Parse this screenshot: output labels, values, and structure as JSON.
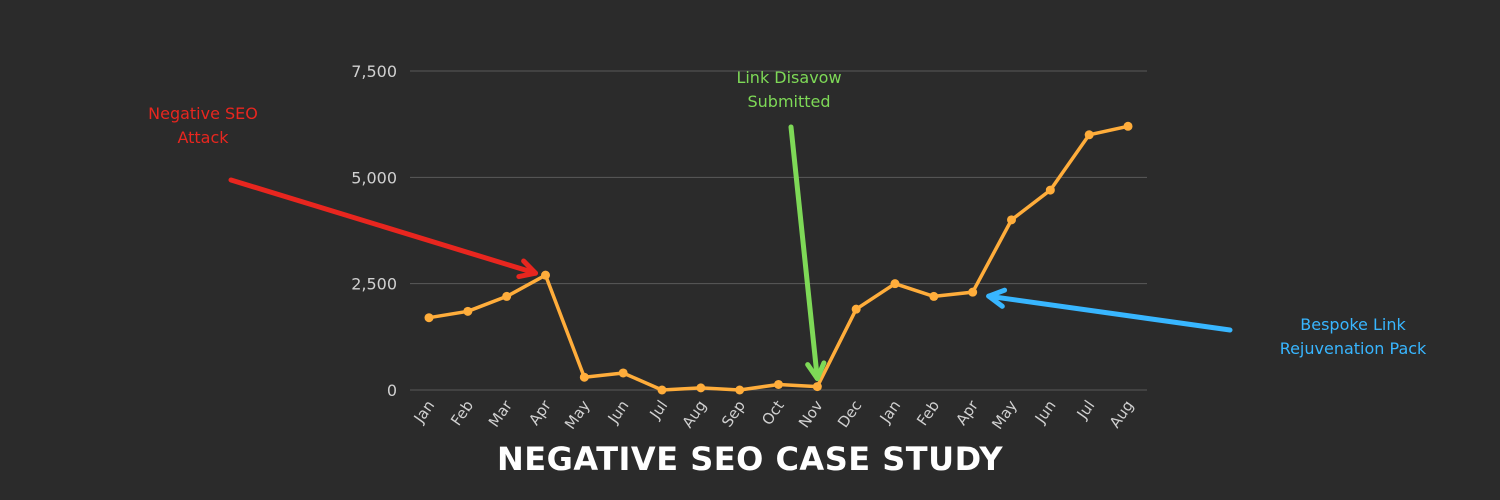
{
  "chart_data": {
    "type": "line",
    "title": "NEGATIVE SEO CASE STUDY",
    "categories": [
      "Jan",
      "Feb",
      "Mar",
      "Apr",
      "May",
      "Jun",
      "Jul",
      "Aug",
      "Sep",
      "Oct",
      "Nov",
      "Dec",
      "Jan",
      "Feb",
      "Apr",
      "May",
      "Jun",
      "Jul",
      "Aug"
    ],
    "series": [
      {
        "values": [
          1700,
          1850,
          2200,
          2700,
          300,
          400,
          0,
          50,
          0,
          130,
          80,
          1900,
          2500,
          2200,
          2300,
          4000,
          4700,
          6000,
          6200
        ]
      }
    ],
    "yticks": [
      "0",
      "2,500",
      "5,000",
      "7,500"
    ],
    "ytick_values": [
      0,
      2500,
      5000,
      7500
    ],
    "ylim": [
      0,
      7500
    ],
    "grid": true,
    "xlabel": "",
    "ylabel": "",
    "annotations": [
      {
        "lines": [
          "Negative SEO",
          "Attack"
        ],
        "color": "#e8261f",
        "target_index": 3
      },
      {
        "lines": [
          "Link Disavow",
          "Submitted"
        ],
        "color": "#7ed957",
        "target_index": 10
      },
      {
        "lines": [
          "Bespoke Link",
          "Rejuvenation Pack"
        ],
        "color": "#38b6ff",
        "target_index": 14
      }
    ]
  },
  "colors": {
    "background": "#2b2b2b",
    "line": "#ffad3b",
    "grid": "#5a5a5a",
    "axis_text": "#d0d0d0"
  }
}
